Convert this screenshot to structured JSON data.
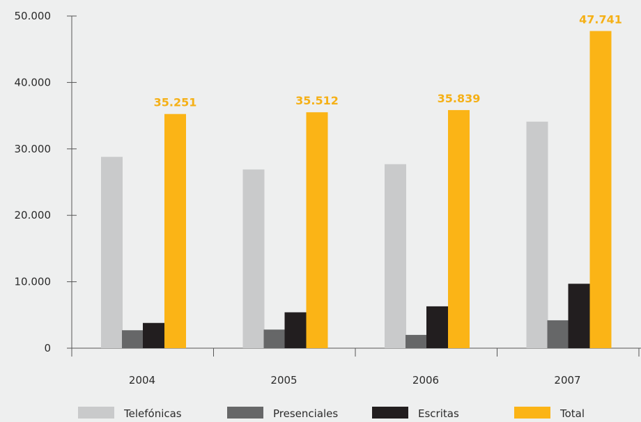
{
  "chart_data": {
    "type": "bar",
    "categories": [
      "2004",
      "2005",
      "2006",
      "2007"
    ],
    "series": [
      {
        "name": "Telefónicas",
        "color": "#c9cacb",
        "values": [
          28800,
          26900,
          27700,
          34100
        ]
      },
      {
        "name": "Presenciales",
        "color": "#666768",
        "values": [
          2700,
          2800,
          2000,
          4200
        ]
      },
      {
        "name": "Escritas",
        "color": "#221e1f",
        "values": [
          3800,
          5400,
          6300,
          9700
        ]
      },
      {
        "name": "Total",
        "color": "#fbb416",
        "values": [
          35251,
          35512,
          35839,
          47741
        ]
      }
    ],
    "total_labels": [
      "35.251",
      "35.512",
      "35.839",
      "47.741"
    ],
    "y_ticks": [
      {
        "value": 0,
        "label": "0"
      },
      {
        "value": 10000,
        "label": "10.000"
      },
      {
        "value": 20000,
        "label": "20.000"
      },
      {
        "value": 30000,
        "label": "30.000"
      },
      {
        "value": 40000,
        "label": "40.000"
      },
      {
        "value": 50000,
        "label": "50.000"
      }
    ],
    "ylim": [
      0,
      50000
    ],
    "title": "",
    "xlabel": "",
    "ylabel": "",
    "grid": false,
    "legend_position": "bottom"
  }
}
